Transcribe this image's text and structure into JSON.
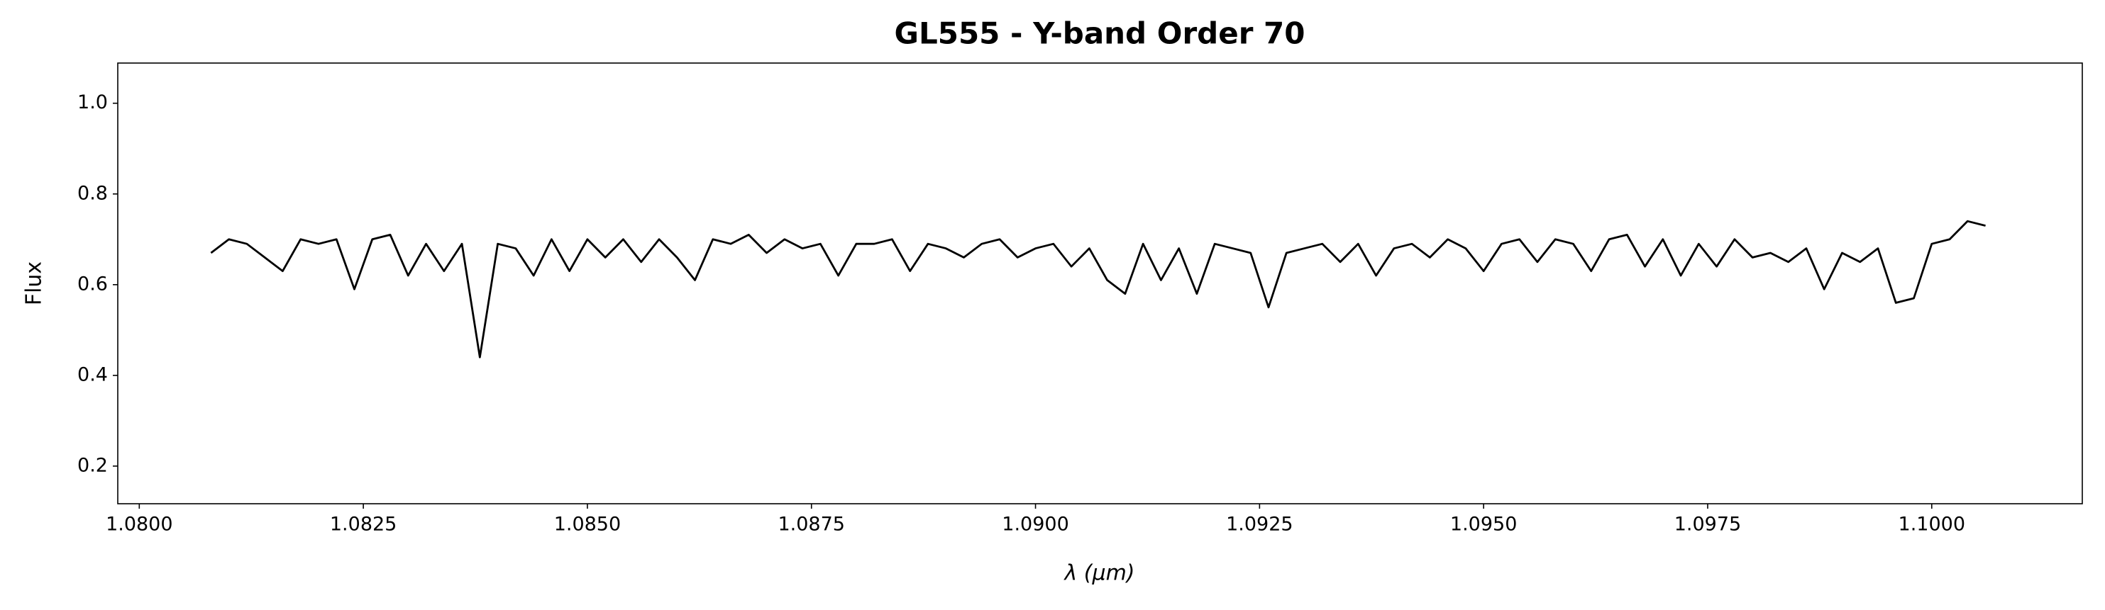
{
  "chart_data": {
    "type": "line",
    "title": "GL555 - Y-band Order 70",
    "x_label": "λ (μm)",
    "y_label": "Flux",
    "x": [
      1.0808,
      1.081,
      1.0812,
      1.0814,
      1.0816,
      1.0818,
      1.082,
      1.0822,
      1.0824,
      1.0826,
      1.0828,
      1.083,
      1.0832,
      1.0834,
      1.0836,
      1.0838,
      1.084,
      1.0842,
      1.0844,
      1.0846,
      1.0848,
      1.085,
      1.0852,
      1.0854,
      1.0856,
      1.0858,
      1.086,
      1.0862,
      1.0864,
      1.0866,
      1.0868,
      1.087,
      1.0872,
      1.0874,
      1.0876,
      1.0878,
      1.088,
      1.0882,
      1.0884,
      1.0886,
      1.0888,
      1.089,
      1.0892,
      1.0894,
      1.0896,
      1.0898,
      1.09,
      1.0902,
      1.0904,
      1.0906,
      1.0908,
      1.091,
      1.0912,
      1.0914,
      1.0916,
      1.0918,
      1.092,
      1.0922,
      1.0924,
      1.0926,
      1.0928,
      1.093,
      1.0932,
      1.0934,
      1.0936,
      1.0938,
      1.094,
      1.0942,
      1.0944,
      1.0946,
      1.0948,
      1.095,
      1.0952,
      1.0954,
      1.0956,
      1.0958,
      1.096,
      1.0962,
      1.0964,
      1.0966,
      1.0968,
      1.097,
      1.0972,
      1.0974,
      1.0976,
      1.0978,
      1.098,
      1.0982,
      1.0984,
      1.0986,
      1.0988,
      1.099,
      1.0992,
      1.0994,
      1.0996,
      1.0998,
      1.1,
      1.1002,
      1.1004,
      1.1006
    ],
    "series": [
      {
        "name": "GL555",
        "color": "#000000",
        "values": [
          0.67,
          0.7,
          0.69,
          0.66,
          0.63,
          0.7,
          0.69,
          0.7,
          0.59,
          0.7,
          0.71,
          0.62,
          0.69,
          0.63,
          0.69,
          0.44,
          0.69,
          0.68,
          0.62,
          0.7,
          0.63,
          0.7,
          0.66,
          0.7,
          0.65,
          0.7,
          0.66,
          0.61,
          0.7,
          0.69,
          0.71,
          0.67,
          0.7,
          0.68,
          0.69,
          0.62,
          0.69,
          0.69,
          0.7,
          0.63,
          0.69,
          0.68,
          0.66,
          0.69,
          0.7,
          0.66,
          0.68,
          0.69,
          0.64,
          0.68,
          0.61,
          0.58,
          0.69,
          0.61,
          0.68,
          0.58,
          0.69,
          0.68,
          0.67,
          0.55,
          0.67,
          0.68,
          0.69,
          0.65,
          0.69,
          0.62,
          0.68,
          0.69,
          0.66,
          0.7,
          0.68,
          0.63,
          0.69,
          0.7,
          0.65,
          0.7,
          0.69,
          0.63,
          0.7,
          0.71,
          0.64,
          0.7,
          0.62,
          0.69,
          0.64,
          0.7,
          0.66,
          0.67,
          0.65,
          0.68,
          0.59,
          0.67,
          0.65,
          0.68,
          0.56,
          0.57,
          0.69,
          0.7,
          0.74,
          0.73
        ]
      }
    ],
    "xlim": [
      1.07976,
      1.10168
    ],
    "ylim": [
      0.117,
      1.0886
    ],
    "xticks": [
      {
        "value": 1.08,
        "label": "1.0800"
      },
      {
        "value": 1.0825,
        "label": "1.0825"
      },
      {
        "value": 1.085,
        "label": "1.0850"
      },
      {
        "value": 1.0875,
        "label": "1.0875"
      },
      {
        "value": 1.09,
        "label": "1.0900"
      },
      {
        "value": 1.0925,
        "label": "1.0925"
      },
      {
        "value": 1.095,
        "label": "1.0950"
      },
      {
        "value": 1.0975,
        "label": "1.0975"
      },
      {
        "value": 1.1,
        "label": "1.1000"
      }
    ],
    "yticks": [
      0.2,
      0.4,
      0.6,
      0.8,
      {
        "value": 1,
        "label": "1.0"
      }
    ],
    "grid": false
  }
}
